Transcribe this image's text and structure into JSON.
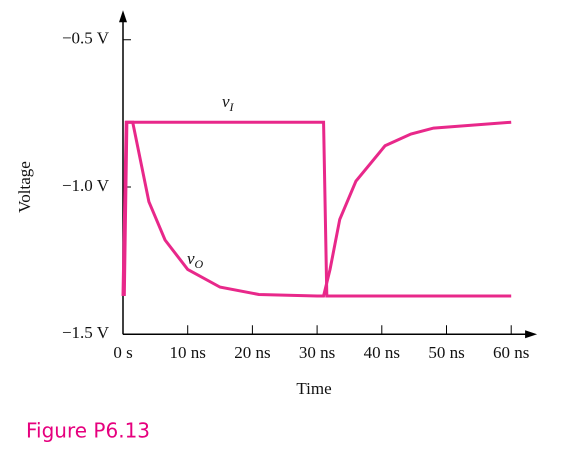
{
  "chart_data": {
    "type": "line",
    "caption": "Figure P6.13",
    "x_label": "Time",
    "y_label": "Voltage",
    "xlim": [
      0,
      64
    ],
    "ylim": [
      -1.5,
      -0.4
    ],
    "xticks": [
      {
        "value": 0,
        "label": "0 s"
      },
      {
        "value": 10,
        "label": "10 ns"
      },
      {
        "value": 20,
        "label": "20 ns"
      },
      {
        "value": 30,
        "label": "30 ns"
      },
      {
        "value": 40,
        "label": "40 ns"
      },
      {
        "value": 50,
        "label": "50 ns"
      },
      {
        "value": 60,
        "label": "60 ns"
      }
    ],
    "yticks": [
      {
        "value": -1.5,
        "label": "−1.5 V"
      },
      {
        "value": -1.0,
        "label": "−1.0 V"
      },
      {
        "value": -0.5,
        "label": "−0.5 V"
      }
    ],
    "grid": false,
    "series": [
      {
        "name": "vI",
        "color": "#e8288a",
        "x": [
          0,
          0.5,
          31,
          31.5,
          60
        ],
        "values": [
          -1.37,
          -0.78,
          -0.78,
          -1.37,
          -1.37
        ]
      },
      {
        "name": "vO",
        "color": "#e8288a",
        "x": [
          0.2,
          0.6,
          1.5,
          4,
          6.5,
          10,
          15,
          21,
          30,
          31,
          32,
          33.5,
          36,
          40.5,
          44.5,
          48,
          60
        ],
        "values": [
          -1.37,
          -0.78,
          -0.78,
          -1.05,
          -1.18,
          -1.28,
          -1.34,
          -1.365,
          -1.37,
          -1.37,
          -1.28,
          -1.11,
          -0.98,
          -0.86,
          -0.82,
          -0.8,
          -0.78
        ]
      }
    ]
  }
}
